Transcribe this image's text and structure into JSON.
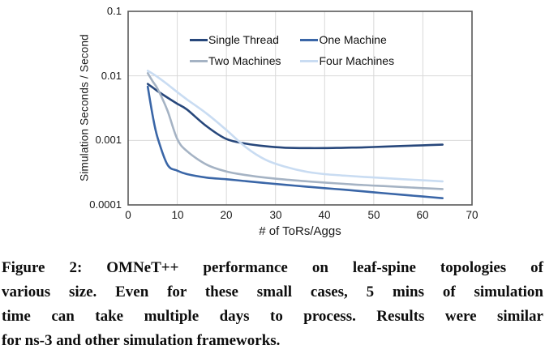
{
  "caption": {
    "lines": [
      "Figure 2: OMNeT++ performance on leaf-spine topologies of",
      "various size. Even for these small cases, 5 mins of simulation",
      "time can take multiple days to process. Results were similar",
      "for ns-3 and other simulation frameworks."
    ]
  },
  "chart_data": {
    "type": "line",
    "title": "",
    "xlabel": "# of ToRs/Aggs",
    "ylabel": "Simulation Seconds / Second",
    "y_scale": "log",
    "xlim": [
      0,
      70
    ],
    "ylim_log": [
      0.0001,
      0.1
    ],
    "grid": true,
    "legend_position": "top-center-inside",
    "x_ticks": [
      0,
      10,
      20,
      30,
      40,
      50,
      60,
      70
    ],
    "x_tick_labels": [
      "0",
      "10",
      "20",
      "30",
      "40",
      "50",
      "60",
      "70"
    ],
    "y_ticks": [
      0.1,
      0.01,
      0.001,
      0.0001
    ],
    "y_tick_labels": [
      "0.1",
      "0.01",
      "0.001",
      "0.0001"
    ],
    "x": [
      4,
      5,
      6,
      8,
      10,
      12,
      16,
      20,
      24,
      28,
      32,
      36,
      40,
      44,
      48,
      52,
      56,
      60,
      64
    ],
    "series": [
      {
        "name": "Single Thread",
        "color": "#27477B",
        "values": [
          0.0075,
          0.0066,
          0.0058,
          0.0046,
          0.0037,
          0.003,
          0.00165,
          0.00105,
          0.00089,
          0.00081,
          0.00077,
          0.00076,
          0.00076,
          0.00077,
          0.00078,
          0.0008,
          0.00082,
          0.00084,
          0.00086
        ]
      },
      {
        "name": "One Machine",
        "color": "#3A66A7",
        "values": [
          0.0068,
          0.0024,
          0.0011,
          0.00042,
          0.00034,
          0.0003,
          0.000265,
          0.00025,
          0.000233,
          0.000218,
          0.000205,
          0.000193,
          0.000182,
          0.000172,
          0.000162,
          0.000152,
          0.000143,
          0.000135,
          0.000127
        ]
      },
      {
        "name": "Two Machines",
        "color": "#A5B3C4",
        "values": [
          0.011,
          0.0082,
          0.0063,
          0.0029,
          0.00105,
          0.00068,
          0.00042,
          0.00033,
          0.00029,
          0.000265,
          0.000247,
          0.000233,
          0.000222,
          0.000212,
          0.000203,
          0.000196,
          0.000189,
          0.000182,
          0.000176
        ]
      },
      {
        "name": "Four Machines",
        "color": "#C9DCF2",
        "values": [
          0.012,
          0.0108,
          0.0096,
          0.0074,
          0.0056,
          0.0043,
          0.0026,
          0.00145,
          0.00078,
          0.0005,
          0.00039,
          0.00033,
          0.0003,
          0.000285,
          0.000272,
          0.000261,
          0.00025,
          0.000241,
          0.000232
        ]
      }
    ],
    "plot_border_color": "#595959",
    "grid_color": "#D9D9D9"
  }
}
